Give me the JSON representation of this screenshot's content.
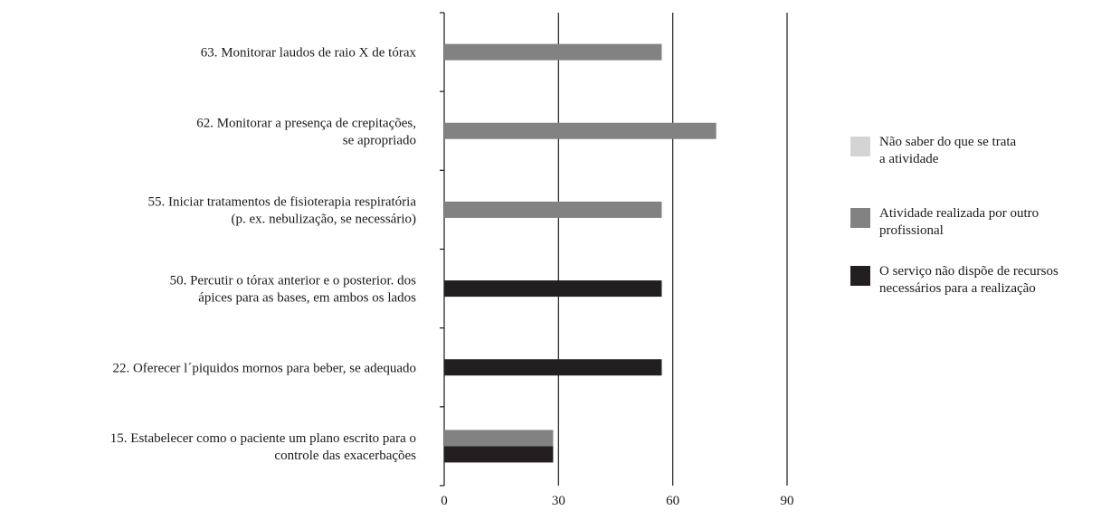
{
  "chart_data": {
    "type": "bar",
    "orientation": "horizontal",
    "title": "",
    "xlabel": "",
    "ylabel": "",
    "xlim": [
      0,
      90
    ],
    "x_ticks": [
      0,
      30,
      60,
      90
    ],
    "grid": "vertical",
    "legend_position": "right",
    "categories": [
      {
        "lines": [
          "63. Monitorar laudos de raio X de tórax"
        ]
      },
      {
        "lines": [
          "62. Monitorar a presença de crepitações,",
          "se apropriado"
        ]
      },
      {
        "lines": [
          "55. Iniciar tratamentos de fisioterapia respiratória",
          "(p. ex. nebulização, se necessário)"
        ]
      },
      {
        "lines": [
          "50. Percutir o tórax anterior e o posterior. dos",
          "ápices para as bases, em ambos os lados"
        ]
      },
      {
        "lines": [
          "22. Oferecer l´piquidos mornos para beber, se adequado"
        ]
      },
      {
        "lines": [
          "15. Estabelecer como o paciente um plano escrito para o",
          "controle das exacerbações"
        ]
      }
    ],
    "series": [
      {
        "legend_lines": [
          "Não saber do que se trata",
          "a atividade"
        ],
        "color": "#d4d4d4",
        "values": [
          0,
          0,
          0,
          0,
          0,
          0
        ]
      },
      {
        "legend_lines": [
          "Atividade realizada por outro",
          "profissional"
        ],
        "color": "#828282",
        "values": [
          57.1,
          71.4,
          57.1,
          0,
          0,
          28.6
        ]
      },
      {
        "legend_lines": [
          "O serviço não dispõe de recursos",
          "necessários para a realização"
        ],
        "color": "#231f20",
        "values": [
          0,
          0,
          0,
          57.1,
          57.1,
          28.6
        ]
      }
    ]
  }
}
